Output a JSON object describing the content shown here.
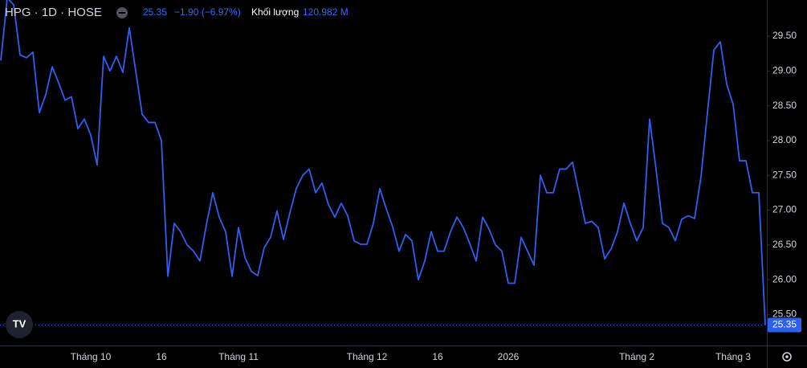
{
  "header": {
    "symbol": "HPG · 1D · HOSE",
    "price": "25.35",
    "change": "−1.90 (−6.97%)",
    "volume_label": "Khối lượng",
    "volume": "120.982 M"
  },
  "chart_data": {
    "type": "line",
    "categories": [
      null,
      null,
      null,
      null,
      null,
      null,
      null,
      null,
      null,
      null,
      null,
      null,
      null,
      null,
      "Tháng 10",
      null,
      null,
      null,
      null,
      null,
      null,
      null,
      null,
      null,
      null,
      "16",
      null,
      null,
      null,
      null,
      null,
      null,
      null,
      null,
      null,
      null,
      null,
      "Tháng 11",
      null,
      null,
      null,
      null,
      null,
      null,
      null,
      null,
      null,
      null,
      null,
      null,
      null,
      null,
      null,
      null,
      null,
      null,
      null,
      "Tháng 12",
      null,
      null,
      null,
      null,
      null,
      null,
      null,
      null,
      null,
      null,
      "16",
      null,
      null,
      null,
      null,
      null,
      null,
      null,
      null,
      null,
      null,
      "2026",
      null,
      null,
      null,
      null,
      null,
      null,
      null,
      null,
      null,
      null,
      null,
      null,
      null,
      null,
      null,
      null,
      null,
      null,
      null,
      "Tháng 2",
      null,
      null,
      null,
      null,
      null,
      null,
      null,
      null,
      null,
      null,
      null,
      null,
      null,
      null,
      "Tháng 3",
      null,
      null,
      null,
      null,
      null
    ],
    "series": [
      {
        "name": "HPG",
        "color": "#2f5ff0",
        "values": [
          29.15,
          30.05,
          29.95,
          29.23,
          29.19,
          29.27,
          28.4,
          28.66,
          29.06,
          28.83,
          28.58,
          28.63,
          28.17,
          28.31,
          28.08,
          27.65,
          29.21,
          29.0,
          29.21,
          28.98,
          29.62,
          29.0,
          28.38,
          28.26,
          28.26,
          28.0,
          26.05,
          26.81,
          26.69,
          26.5,
          26.41,
          26.27,
          26.79,
          27.25,
          26.9,
          26.69,
          26.05,
          26.75,
          26.32,
          26.12,
          26.06,
          26.46,
          26.61,
          26.99,
          26.58,
          26.96,
          27.31,
          27.5,
          27.59,
          27.25,
          27.39,
          27.08,
          26.9,
          27.1,
          26.92,
          26.56,
          26.51,
          26.51,
          26.81,
          27.31,
          27.02,
          26.76,
          26.41,
          26.65,
          26.56,
          26.0,
          26.27,
          26.69,
          26.41,
          26.41,
          26.69,
          26.9,
          26.75,
          26.52,
          26.27,
          26.9,
          26.73,
          26.5,
          26.41,
          25.95,
          25.95,
          26.61,
          26.41,
          26.21,
          27.5,
          27.25,
          27.25,
          27.59,
          27.59,
          27.69,
          27.25,
          26.81,
          26.84,
          26.75,
          26.3,
          26.44,
          26.69,
          27.1,
          26.81,
          26.56,
          26.75,
          28.31,
          27.59,
          26.81,
          26.75,
          26.56,
          26.87,
          26.92,
          26.88,
          27.48,
          28.4,
          29.3,
          29.42,
          28.81,
          28.52,
          27.71,
          27.71,
          27.25,
          27.25,
          25.35
        ]
      }
    ],
    "ylim": [
      25.055,
      30.02
    ],
    "yticks": [
      {
        "value": 25.5,
        "label": "25.50"
      },
      {
        "value": 26,
        "label": "26.00"
      },
      {
        "value": 26.5,
        "label": "26.50"
      },
      {
        "value": 27,
        "label": "27.00"
      },
      {
        "value": 27.5,
        "label": "27.50"
      },
      {
        "value": 28,
        "label": "28.00"
      },
      {
        "value": 28.5,
        "label": "28.50"
      },
      {
        "value": 29,
        "label": "29.00"
      },
      {
        "value": 29.5,
        "label": "29.50"
      }
    ],
    "grid": false
  }
}
